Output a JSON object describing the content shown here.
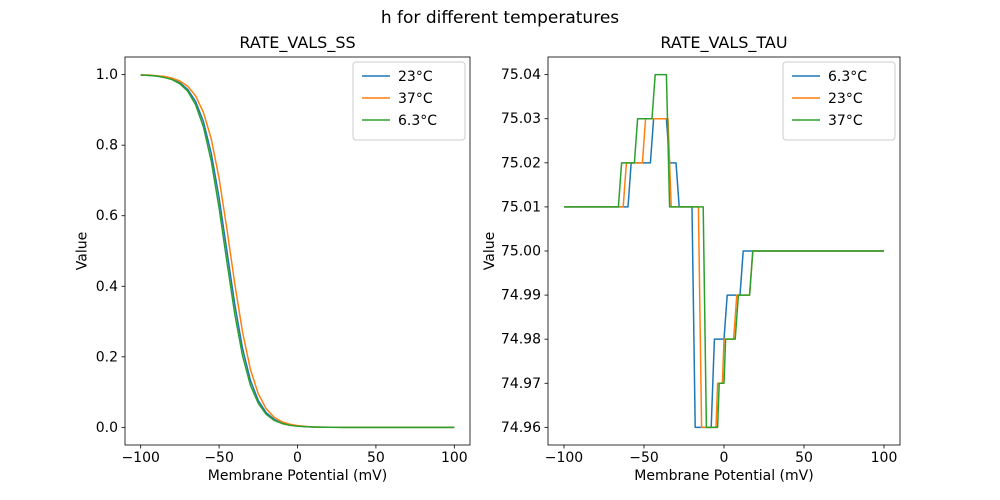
{
  "title": "h for different temperatures",
  "colors": {
    "blue": "#1f77b4",
    "orange": "#ff7f0e",
    "green": "#2ca02c",
    "axis": "#000000",
    "legend_edge": "#cccccc",
    "background": "#ffffff"
  },
  "chart_data": [
    {
      "type": "line",
      "title": "RATE_VALS_SS",
      "xlabel": "Membrane Potential (mV)",
      "ylabel": "Value",
      "xlim": [
        -110,
        110
      ],
      "ylim": [
        -0.05,
        1.05
      ],
      "legend_loc": "upper right",
      "grid": false,
      "xticks": [
        {
          "v": -100,
          "label": "−100"
        },
        {
          "v": -50,
          "label": "−50"
        },
        {
          "v": 0,
          "label": "0"
        },
        {
          "v": 50,
          "label": "50"
        },
        {
          "v": 100,
          "label": "100"
        }
      ],
      "yticks": [
        {
          "v": 0.0,
          "label": "0.0"
        },
        {
          "v": 0.2,
          "label": "0.2"
        },
        {
          "v": 0.4,
          "label": "0.4"
        },
        {
          "v": 0.6,
          "label": "0.6"
        },
        {
          "v": 0.8,
          "label": "0.8"
        },
        {
          "v": 1.0,
          "label": "1.0"
        }
      ],
      "x": [
        -100,
        -95,
        -90,
        -85,
        -80,
        -75,
        -70,
        -65,
        -60,
        -55,
        -50,
        -45,
        -40,
        -35,
        -30,
        -25,
        -20,
        -15,
        -10,
        -5,
        0,
        5,
        10,
        15,
        20,
        25,
        30,
        40,
        50,
        60,
        70,
        80,
        90,
        100
      ],
      "series": [
        {
          "name": "23°C",
          "color": "#1f77b4",
          "y": [
            0.999,
            0.998,
            0.996,
            0.993,
            0.988,
            0.977,
            0.958,
            0.924,
            0.867,
            0.777,
            0.651,
            0.5,
            0.349,
            0.223,
            0.133,
            0.076,
            0.042,
            0.023,
            0.012,
            0.007,
            0.004,
            0.002,
            0.001,
            0.0006,
            0.0003,
            0.0002,
            0.0001,
            0,
            0,
            0,
            0,
            0,
            0,
            0
          ]
        },
        {
          "name": "37°C",
          "color": "#ff7f0e",
          "y": [
            0.999,
            0.999,
            0.997,
            0.995,
            0.99,
            0.982,
            0.967,
            0.94,
            0.893,
            0.818,
            0.706,
            0.562,
            0.407,
            0.269,
            0.164,
            0.095,
            0.053,
            0.029,
            0.016,
            0.009,
            0.005,
            0.003,
            0.001,
            0.0007,
            0.0004,
            0.0002,
            0.0001,
            0,
            0,
            0,
            0,
            0,
            0,
            0
          ]
        },
        {
          "name": "6.3°C",
          "color": "#2ca02c",
          "y": [
            0.999,
            0.998,
            0.996,
            0.992,
            0.986,
            0.974,
            0.953,
            0.915,
            0.852,
            0.755,
            0.622,
            0.469,
            0.321,
            0.202,
            0.119,
            0.068,
            0.037,
            0.02,
            0.011,
            0.006,
            0.003,
            0.002,
            0.001,
            0.0005,
            0.0003,
            0.0001,
            0.0001,
            0,
            0,
            0,
            0,
            0,
            0,
            0
          ]
        }
      ]
    },
    {
      "type": "line",
      "title": "RATE_VALS_TAU",
      "xlabel": "Membrane Potential (mV)",
      "ylabel": "Value",
      "xlim": [
        -110,
        110
      ],
      "ylim": [
        74.956,
        75.044
      ],
      "legend_loc": "upper right",
      "grid": false,
      "xticks": [
        {
          "v": -100,
          "label": "−100"
        },
        {
          "v": -50,
          "label": "−50"
        },
        {
          "v": 0,
          "label": "0"
        },
        {
          "v": 50,
          "label": "50"
        },
        {
          "v": 100,
          "label": "100"
        }
      ],
      "yticks": [
        {
          "v": 74.96,
          "label": "74.96"
        },
        {
          "v": 74.97,
          "label": "74.97"
        },
        {
          "v": 74.98,
          "label": "74.98"
        },
        {
          "v": 74.99,
          "label": "74.99"
        },
        {
          "v": 75.0,
          "label": "75.00"
        },
        {
          "v": 75.01,
          "label": "75.01"
        },
        {
          "v": 75.02,
          "label": "75.02"
        },
        {
          "v": 75.03,
          "label": "75.03"
        },
        {
          "v": 75.04,
          "label": "75.04"
        }
      ],
      "series": [
        {
          "name": "6.3°C",
          "color": "#1f77b4",
          "points": [
            [
              -100,
              75.01
            ],
            [
              -60,
              75.01
            ],
            [
              -58,
              75.02
            ],
            [
              -46,
              75.02
            ],
            [
              -44,
              75.03
            ],
            [
              -36,
              75.03
            ],
            [
              -34,
              75.02
            ],
            [
              -30,
              75.02
            ],
            [
              -28,
              75.01
            ],
            [
              -20,
              75.01
            ],
            [
              -18,
              74.96
            ],
            [
              -8,
              74.96
            ],
            [
              -6,
              74.98
            ],
            [
              0,
              74.98
            ],
            [
              2,
              74.99
            ],
            [
              10,
              74.99
            ],
            [
              12,
              75.0
            ],
            [
              100,
              75.0
            ]
          ]
        },
        {
          "name": "23°C",
          "color": "#ff7f0e",
          "points": [
            [
              -100,
              75.01
            ],
            [
              -63,
              75.01
            ],
            [
              -61,
              75.02
            ],
            [
              -51,
              75.02
            ],
            [
              -49,
              75.03
            ],
            [
              -35,
              75.03
            ],
            [
              -33,
              75.01
            ],
            [
              -16,
              75.01
            ],
            [
              -14,
              74.96
            ],
            [
              -5,
              74.96
            ],
            [
              -4,
              74.97
            ],
            [
              -1,
              74.97
            ],
            [
              0,
              74.98
            ],
            [
              6,
              74.98
            ],
            [
              8,
              74.99
            ],
            [
              16,
              74.99
            ],
            [
              18,
              75.0
            ],
            [
              100,
              75.0
            ]
          ]
        },
        {
          "name": "37°C",
          "color": "#2ca02c",
          "points": [
            [
              -100,
              75.01
            ],
            [
              -66,
              75.01
            ],
            [
              -64,
              75.02
            ],
            [
              -56,
              75.02
            ],
            [
              -54,
              75.03
            ],
            [
              -45,
              75.03
            ],
            [
              -43,
              75.04
            ],
            [
              -36,
              75.04
            ],
            [
              -34,
              75.01
            ],
            [
              -13,
              75.01
            ],
            [
              -11,
              74.96
            ],
            [
              -4,
              74.96
            ],
            [
              -3,
              74.97
            ],
            [
              0,
              74.97
            ],
            [
              1,
              74.98
            ],
            [
              7,
              74.98
            ],
            [
              9,
              74.99
            ],
            [
              16,
              74.99
            ],
            [
              18,
              75.0
            ],
            [
              100,
              75.0
            ]
          ]
        }
      ]
    }
  ]
}
